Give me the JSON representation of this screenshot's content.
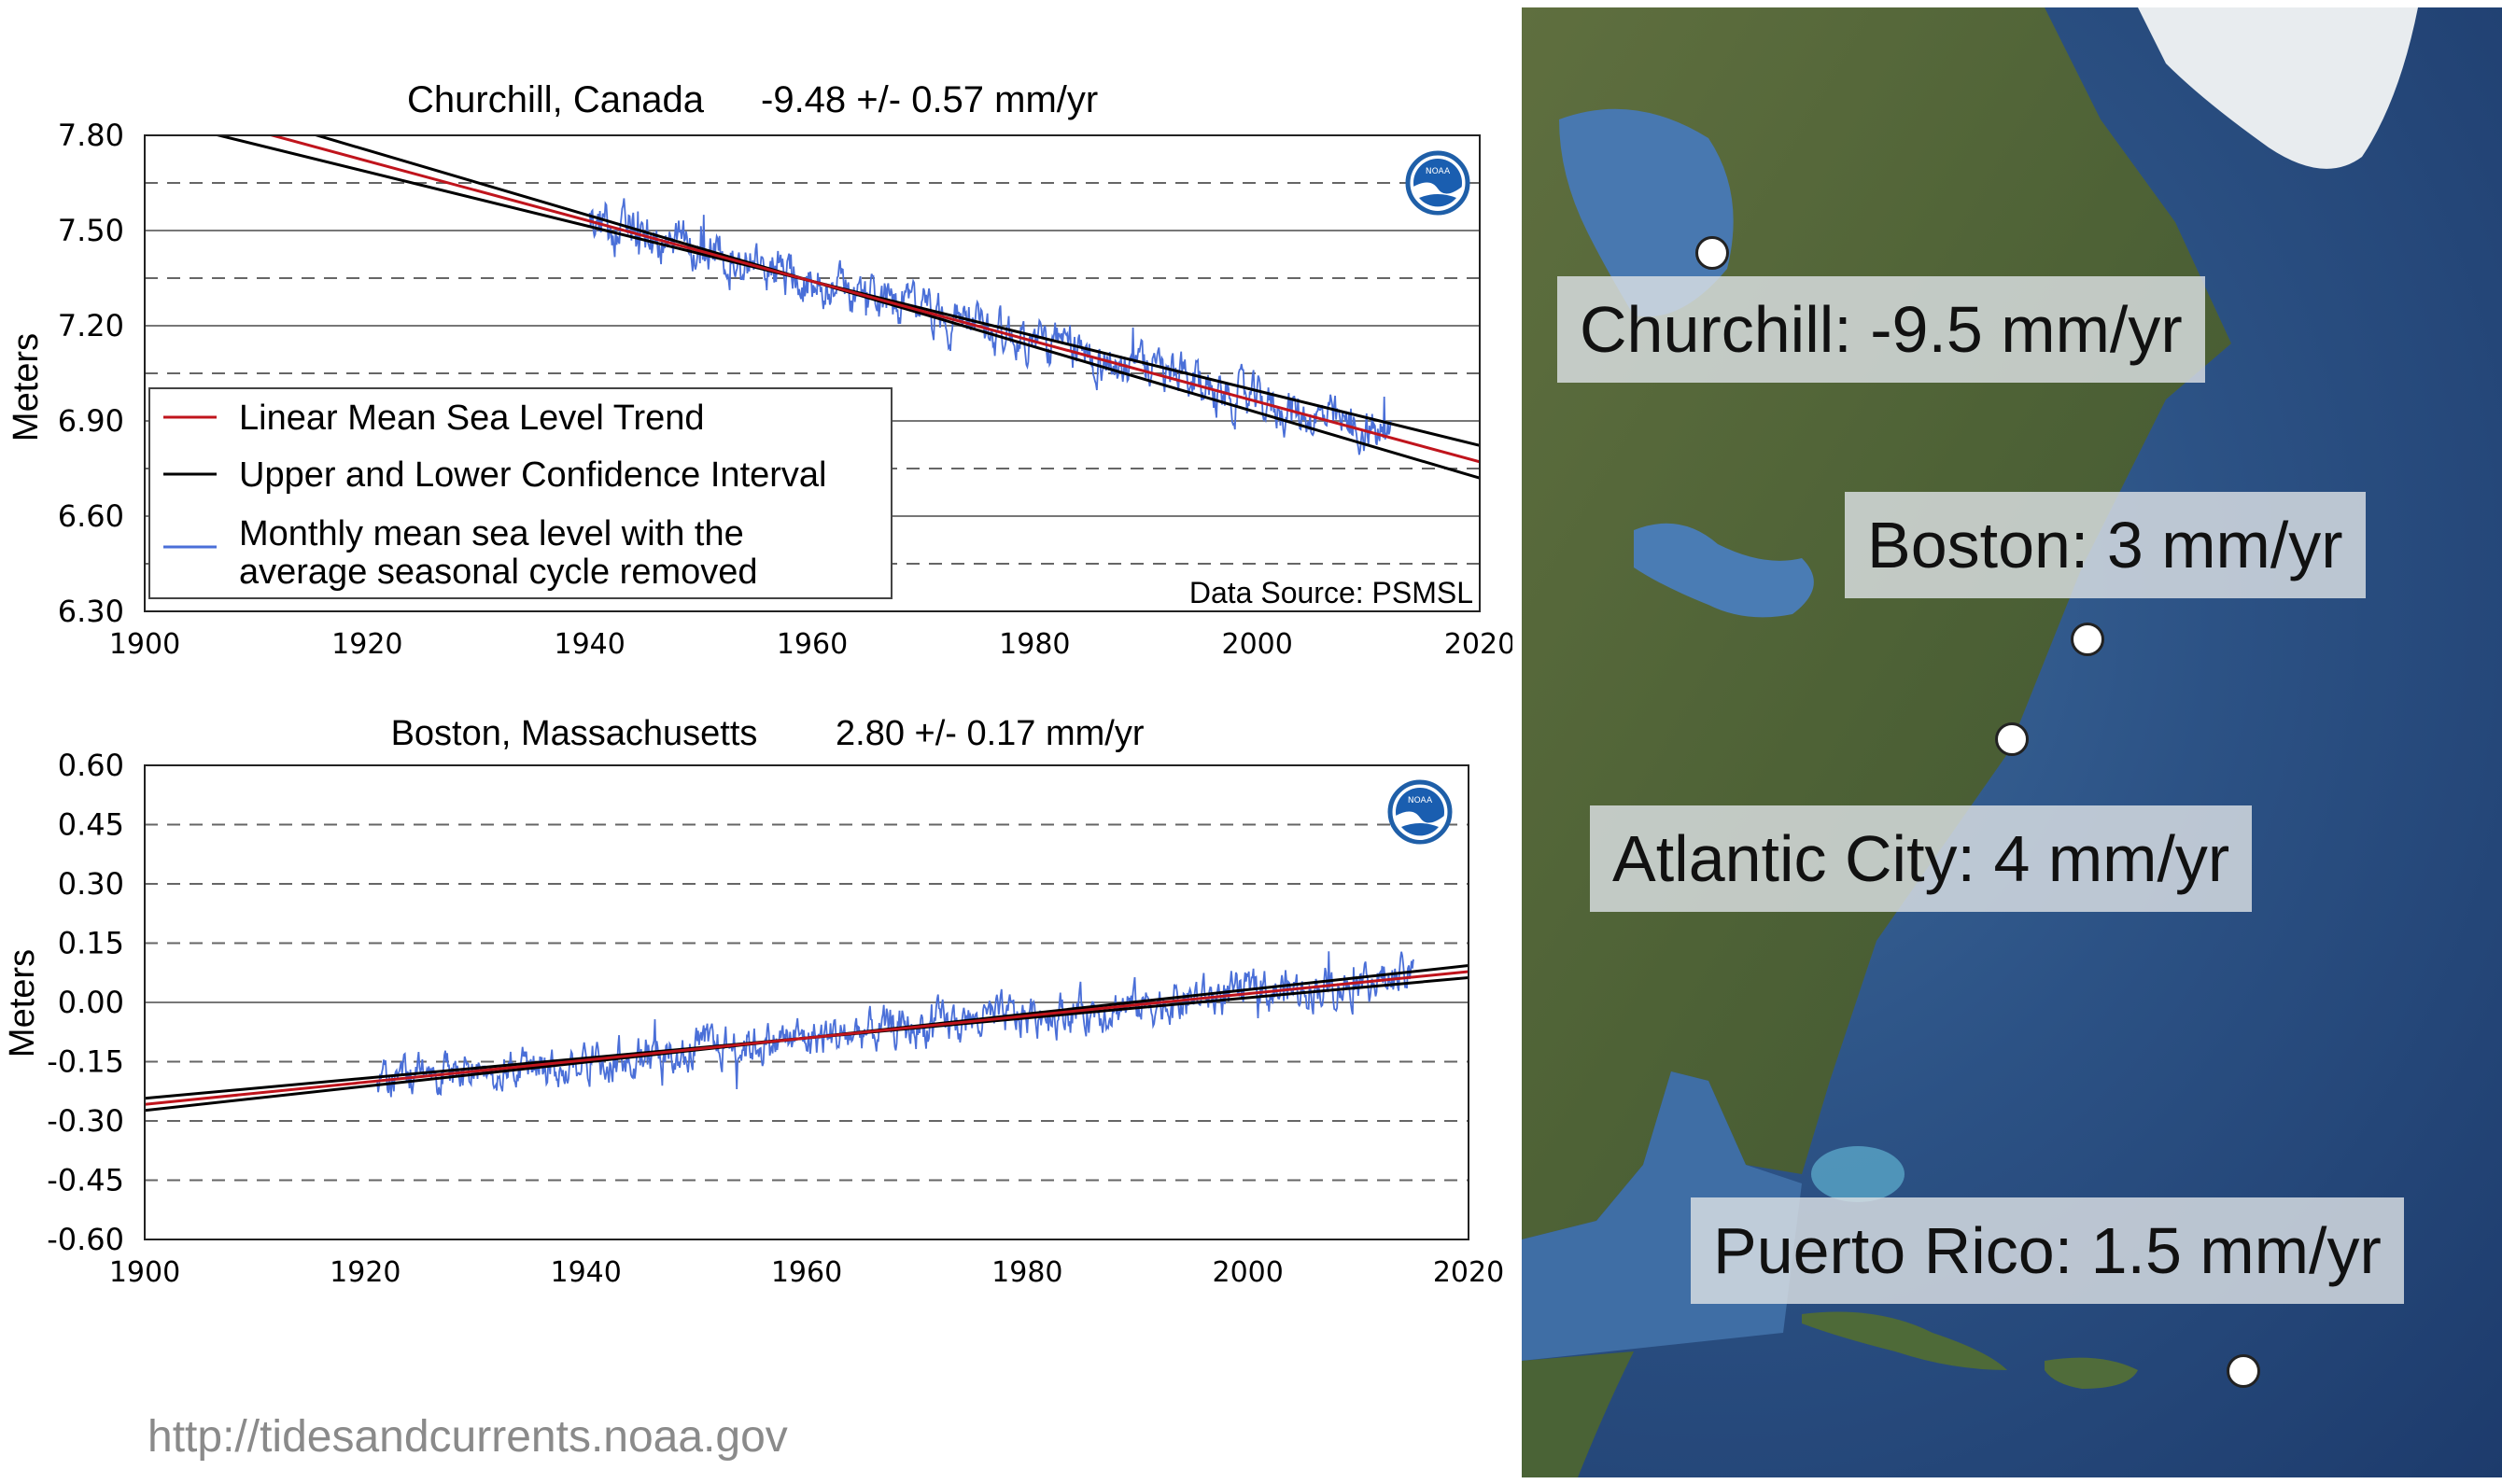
{
  "chart_data": [
    {
      "type": "line",
      "title": "Churchill, Canada",
      "trend_text": "-9.48 +/- 0.57 mm/yr",
      "ylabel": "Meters",
      "xlim": [
        1900,
        2020
      ],
      "ylim": [
        6.3,
        7.8
      ],
      "xticks": [
        "1900",
        "1920",
        "1940",
        "1960",
        "1980",
        "2000",
        "2020"
      ],
      "yticks": [
        "6.30",
        "6.60",
        "6.90",
        "7.20",
        "7.50",
        "7.80"
      ],
      "grid_dashed": [
        6.45,
        6.75,
        7.05,
        7.35,
        7.65
      ],
      "grid_solid": [
        6.6,
        6.9,
        7.2,
        7.5
      ],
      "trend": {
        "year": 1960,
        "value": 7.34,
        "slope_m_per_yr": -0.00948,
        "ci_m_per_yr": 0.00057
      },
      "monthly": {
        "start": 1940,
        "end": 2012,
        "noise": 0.07
      },
      "legend": {
        "items": [
          {
            "label": "Linear Mean Sea Level Trend",
            "color": "#c0141c"
          },
          {
            "label": "Upper and Lower Confidence Interval",
            "color": "#000000"
          },
          {
            "label_line1": "Monthly mean sea level with the",
            "label_line2": "average seasonal cycle removed",
            "color": "#4a6fd8"
          }
        ],
        "placement": "lower-left"
      },
      "data_source": "Data Source: PSMSL",
      "logo": "noaa-logo"
    },
    {
      "type": "line",
      "title": "Boston, Massachusetts",
      "trend_text": "2.80 +/- 0.17 mm/yr",
      "ylabel": "Meters",
      "xlim": [
        1900,
        2020
      ],
      "ylim": [
        -0.6,
        0.6
      ],
      "xticks": [
        "1900",
        "1920",
        "1940",
        "1960",
        "1980",
        "2000",
        "2020"
      ],
      "yticks": [
        "0.60",
        "0.45",
        "0.30",
        "0.15",
        "0.00",
        "-0.15",
        "-0.30",
        "-0.45",
        "-0.60"
      ],
      "grid_dashed": [
        0.45,
        0.3,
        0.15,
        -0.15,
        -0.3,
        -0.45
      ],
      "grid_solid": [
        0.0
      ],
      "trend": {
        "year": 1960,
        "value": -0.09,
        "slope_m_per_yr": 0.0028,
        "ci_m_per_yr": 0.00017
      },
      "monthly": {
        "start": 1921,
        "end": 2015,
        "noise": 0.05
      },
      "logo": "noaa-logo"
    }
  ],
  "map": {
    "labels": [
      {
        "key": "churchill",
        "text": "Churchill: -9.5 mm/yr"
      },
      {
        "key": "boston",
        "text": "Boston: 3 mm/yr"
      },
      {
        "key": "atlantic",
        "text": "Atlantic City: 4 mm/yr"
      },
      {
        "key": "puerto",
        "text": "Puerto Rico: 1.5 mm/yr"
      }
    ]
  },
  "source_url": "http://tidesandcurrents.noaa.gov",
  "colors": {
    "trend": "#c0141c",
    "ci": "#000000",
    "monthly": "#4a6fd8",
    "label_bg": "#dcdfe2"
  }
}
